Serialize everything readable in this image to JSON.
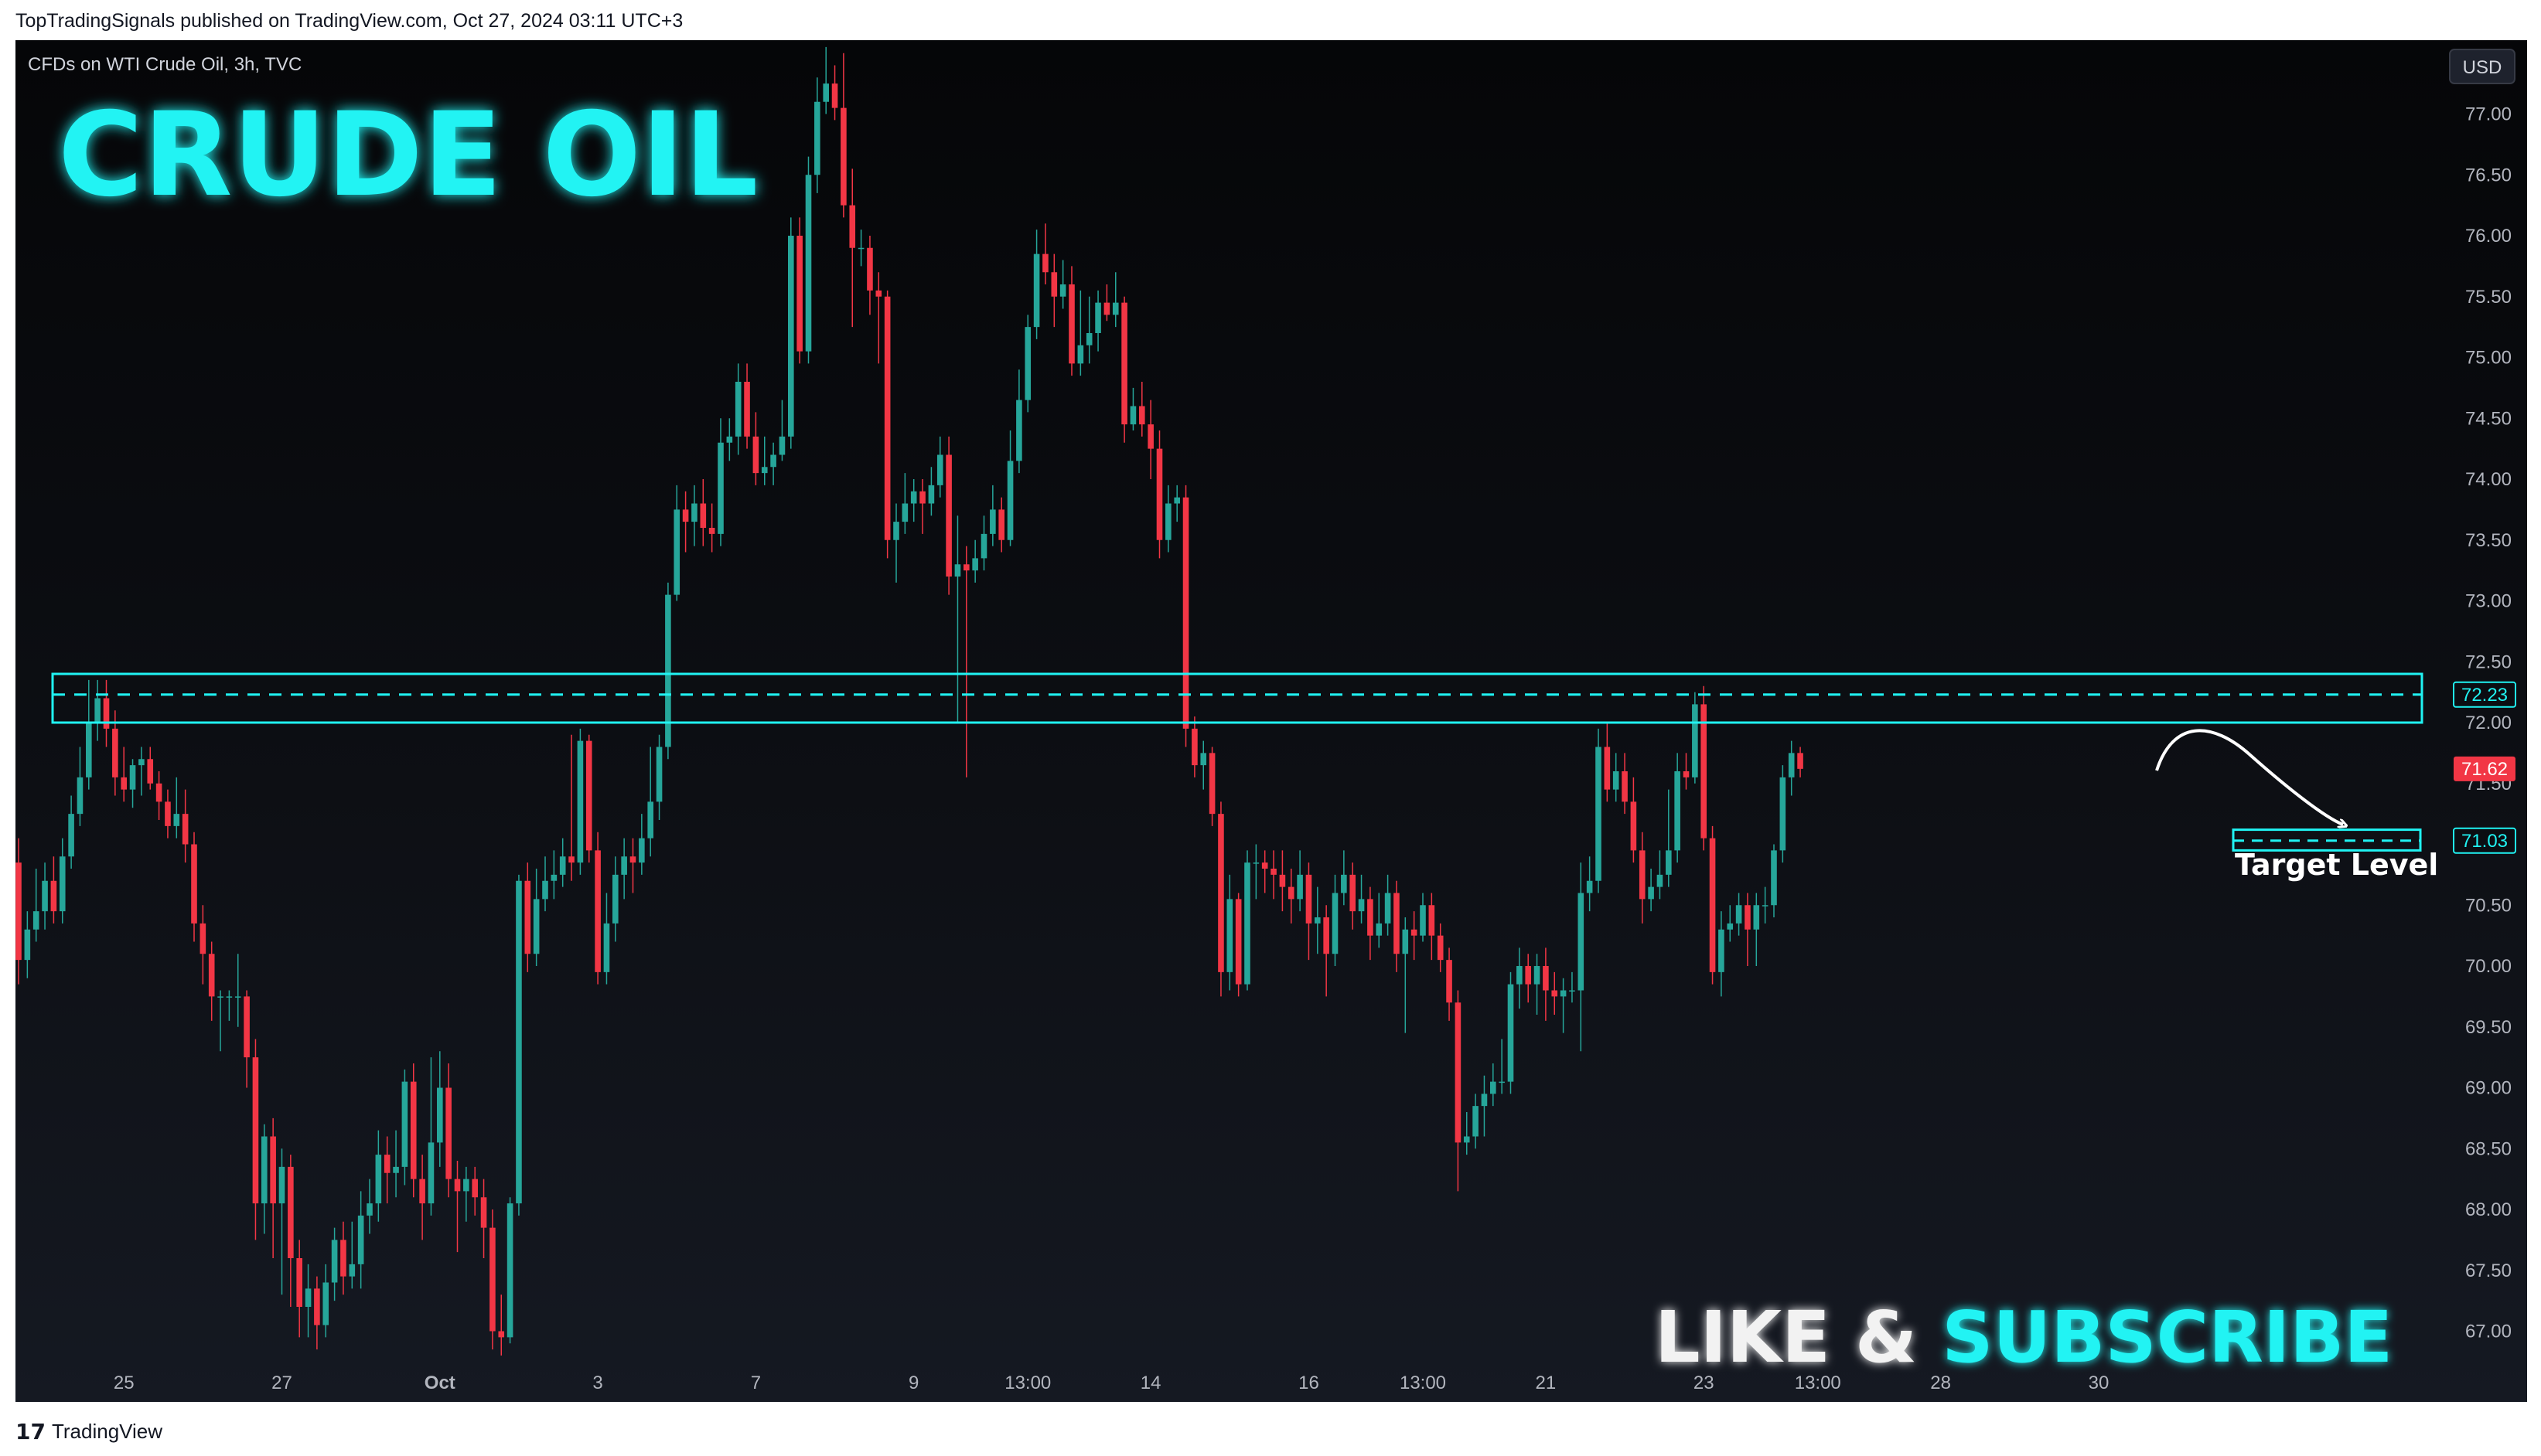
{
  "header": {
    "publish_text": "TopTradingSignals published on TradingView.com, Oct 27, 2024 03:11 UTC+3"
  },
  "symbol_info": "CFDs on WTI Crude Oil, 3h, TVC",
  "currency_button": "USD",
  "title_overlay": "CRUDE OIL",
  "promo": {
    "part1": "LIKE & ",
    "part2": "SUBSCRIBE"
  },
  "target_label": "Target Level",
  "footer": {
    "logo_mark": "17",
    "logo_text": "TradingView"
  },
  "colors": {
    "up": "#26a69a",
    "down": "#f23645",
    "accent": "#20f3f3",
    "background": "#0b0d12"
  },
  "chart_data": {
    "type": "candlestick",
    "symbol": "CFDs on WTI Crude Oil",
    "timeframe": "3h",
    "ylim": [
      66.6,
      77.6
    ],
    "price_ticks": [
      "77.00",
      "76.50",
      "76.00",
      "75.50",
      "75.00",
      "74.50",
      "74.00",
      "73.50",
      "73.00",
      "72.50",
      "72.00",
      "71.50",
      "71.00",
      "70.50",
      "70.00",
      "69.50",
      "69.00",
      "68.50",
      "68.00",
      "67.50",
      "67.00"
    ],
    "time_ticks": [
      {
        "label": "25",
        "idx": 12
      },
      {
        "label": "27",
        "idx": 30
      },
      {
        "label": "Oct",
        "idx": 48
      },
      {
        "label": "3",
        "idx": 66
      },
      {
        "label": "7",
        "idx": 84
      },
      {
        "label": "9",
        "idx": 102
      },
      {
        "label": "13:00",
        "idx": 115
      },
      {
        "label": "14",
        "idx": 129
      },
      {
        "label": "16",
        "idx": 147
      },
      {
        "label": "13:00",
        "idx": 160
      },
      {
        "label": "21",
        "idx": 174
      },
      {
        "label": "23",
        "idx": 192
      },
      {
        "label": "13:00",
        "idx": 205
      },
      {
        "label": "28",
        "idx": 219
      },
      {
        "label": "30",
        "idx": 237
      }
    ],
    "resistance_zone": {
      "low": 72.0,
      "high": 72.4,
      "level": "72.23"
    },
    "target_zone": {
      "low": 70.95,
      "high": 71.12,
      "level": "71.03"
    },
    "last_price": "71.62",
    "candles": [
      [
        70.85,
        70.05,
        71.05,
        69.85
      ],
      [
        70.05,
        70.3,
        70.45,
        69.9
      ],
      [
        70.3,
        70.45,
        70.8,
        70.2
      ],
      [
        70.45,
        70.7,
        70.85,
        70.3
      ],
      [
        70.7,
        70.45,
        70.9,
        70.35
      ],
      [
        70.45,
        70.9,
        71.05,
        70.35
      ],
      [
        70.9,
        71.25,
        71.4,
        70.8
      ],
      [
        71.25,
        71.55,
        71.8,
        71.15
      ],
      [
        71.55,
        72.0,
        72.35,
        71.45
      ],
      [
        72.0,
        72.2,
        72.35,
        71.85
      ],
      [
        72.2,
        71.95,
        72.35,
        71.8
      ],
      [
        71.95,
        71.55,
        72.1,
        71.4
      ],
      [
        71.55,
        71.45,
        71.8,
        71.35
      ],
      [
        71.45,
        71.65,
        71.7,
        71.3
      ],
      [
        71.65,
        71.7,
        71.8,
        71.4
      ],
      [
        71.7,
        71.5,
        71.8,
        71.45
      ],
      [
        71.5,
        71.35,
        71.6,
        71.2
      ],
      [
        71.35,
        71.15,
        71.45,
        71.05
      ],
      [
        71.15,
        71.25,
        71.55,
        71.05
      ],
      [
        71.25,
        71.0,
        71.45,
        70.85
      ],
      [
        71.0,
        70.35,
        71.1,
        70.2
      ],
      [
        70.35,
        70.1,
        70.5,
        69.85
      ],
      [
        70.1,
        69.75,
        70.2,
        69.55
      ],
      [
        69.75,
        69.75,
        69.8,
        69.3
      ],
      [
        69.75,
        69.75,
        69.8,
        69.55
      ],
      [
        69.75,
        69.75,
        70.1,
        69.5
      ],
      [
        69.75,
        69.25,
        69.8,
        69.0
      ],
      [
        69.25,
        68.05,
        69.4,
        67.75
      ],
      [
        68.05,
        68.6,
        68.7,
        67.8
      ],
      [
        68.6,
        68.05,
        68.75,
        67.6
      ],
      [
        68.05,
        68.35,
        68.5,
        67.3
      ],
      [
        68.35,
        67.6,
        68.45,
        67.2
      ],
      [
        67.6,
        67.2,
        67.75,
        66.95
      ],
      [
        67.2,
        67.35,
        67.55,
        66.95
      ],
      [
        67.35,
        67.05,
        67.45,
        66.85
      ],
      [
        67.05,
        67.4,
        67.55,
        66.95
      ],
      [
        67.4,
        67.75,
        67.85,
        67.25
      ],
      [
        67.75,
        67.45,
        67.9,
        67.3
      ],
      [
        67.45,
        67.55,
        67.9,
        67.35
      ],
      [
        67.55,
        67.95,
        68.15,
        67.35
      ],
      [
        67.95,
        68.05,
        68.25,
        67.8
      ],
      [
        68.05,
        68.45,
        68.65,
        67.9
      ],
      [
        68.45,
        68.3,
        68.6,
        68.05
      ],
      [
        68.3,
        68.35,
        68.65,
        68.1
      ],
      [
        68.35,
        69.05,
        69.15,
        68.2
      ],
      [
        69.05,
        68.25,
        69.2,
        68.1
      ],
      [
        68.25,
        68.05,
        68.45,
        67.75
      ],
      [
        68.05,
        68.55,
        69.25,
        67.95
      ],
      [
        68.55,
        69.0,
        69.3,
        68.35
      ],
      [
        69.0,
        68.25,
        69.2,
        68.1
      ],
      [
        68.25,
        68.15,
        68.4,
        67.65
      ],
      [
        68.15,
        68.25,
        68.35,
        67.9
      ],
      [
        68.25,
        68.1,
        68.35,
        67.95
      ],
      [
        68.1,
        67.85,
        68.25,
        67.6
      ],
      [
        67.85,
        67.0,
        68.0,
        66.85
      ],
      [
        67.0,
        66.95,
        67.3,
        66.8
      ],
      [
        66.95,
        68.05,
        68.1,
        66.9
      ],
      [
        68.05,
        70.7,
        70.75,
        67.95
      ],
      [
        70.7,
        70.1,
        70.85,
        69.95
      ],
      [
        70.1,
        70.55,
        70.8,
        70.0
      ],
      [
        70.55,
        70.7,
        70.9,
        70.45
      ],
      [
        70.7,
        70.75,
        70.95,
        70.55
      ],
      [
        70.75,
        70.9,
        71.05,
        70.65
      ],
      [
        70.9,
        70.85,
        71.9,
        70.7
      ],
      [
        70.85,
        71.85,
        71.95,
        70.75
      ],
      [
        71.85,
        70.95,
        71.9,
        70.85
      ],
      [
        70.95,
        69.95,
        71.1,
        69.85
      ],
      [
        69.95,
        70.35,
        70.6,
        69.85
      ],
      [
        70.35,
        70.75,
        70.9,
        70.2
      ],
      [
        70.75,
        70.9,
        71.05,
        70.55
      ],
      [
        70.9,
        70.85,
        71.05,
        70.6
      ],
      [
        70.85,
        71.05,
        71.25,
        70.75
      ],
      [
        71.05,
        71.35,
        71.8,
        70.9
      ],
      [
        71.35,
        71.8,
        71.9,
        71.2
      ],
      [
        71.8,
        73.05,
        73.15,
        71.7
      ],
      [
        73.05,
        73.75,
        73.95,
        73.0
      ],
      [
        73.75,
        73.65,
        73.9,
        73.4
      ],
      [
        73.65,
        73.8,
        73.95,
        73.45
      ],
      [
        73.8,
        73.6,
        74.0,
        73.45
      ],
      [
        73.6,
        73.55,
        73.8,
        73.4
      ],
      [
        73.55,
        74.3,
        74.5,
        73.45
      ],
      [
        74.3,
        74.35,
        74.5,
        74.15
      ],
      [
        74.35,
        74.8,
        74.95,
        74.2
      ],
      [
        74.8,
        74.35,
        74.95,
        74.25
      ],
      [
        74.35,
        74.05,
        74.55,
        73.95
      ],
      [
        74.05,
        74.1,
        74.35,
        73.95
      ],
      [
        74.1,
        74.2,
        74.3,
        73.95
      ],
      [
        74.2,
        74.35,
        74.65,
        74.15
      ],
      [
        74.35,
        76.0,
        76.15,
        74.25
      ],
      [
        76.0,
        75.05,
        76.15,
        74.95
      ],
      [
        75.05,
        76.5,
        76.65,
        74.95
      ],
      [
        76.5,
        77.1,
        77.3,
        76.35
      ],
      [
        77.1,
        77.25,
        77.55,
        77.0
      ],
      [
        77.25,
        77.05,
        77.4,
        76.95
      ],
      [
        77.05,
        76.25,
        77.5,
        76.15
      ],
      [
        76.25,
        75.9,
        76.55,
        75.25
      ],
      [
        75.9,
        75.9,
        76.05,
        75.75
      ],
      [
        75.9,
        75.55,
        76.0,
        75.35
      ],
      [
        75.55,
        75.5,
        75.7,
        74.95
      ],
      [
        75.5,
        73.5,
        75.55,
        73.35
      ],
      [
        73.5,
        73.65,
        73.8,
        73.15
      ],
      [
        73.65,
        73.8,
        74.05,
        73.55
      ],
      [
        73.8,
        73.9,
        74.0,
        73.65
      ],
      [
        73.9,
        73.8,
        74.0,
        73.55
      ],
      [
        73.8,
        73.95,
        74.1,
        73.7
      ],
      [
        73.95,
        74.2,
        74.35,
        73.85
      ],
      [
        74.2,
        73.2,
        74.35,
        73.05
      ],
      [
        73.2,
        73.3,
        73.7,
        72.0
      ],
      [
        73.3,
        73.25,
        73.45,
        71.55
      ],
      [
        73.25,
        73.35,
        73.5,
        73.15
      ],
      [
        73.35,
        73.55,
        73.7,
        73.25
      ],
      [
        73.55,
        73.75,
        73.95,
        73.45
      ],
      [
        73.75,
        73.5,
        73.85,
        73.4
      ],
      [
        73.5,
        74.15,
        74.4,
        73.45
      ],
      [
        74.15,
        74.65,
        74.9,
        74.05
      ],
      [
        74.65,
        75.25,
        75.35,
        74.55
      ],
      [
        75.25,
        75.85,
        76.05,
        75.15
      ],
      [
        75.85,
        75.7,
        76.1,
        75.6
      ],
      [
        75.7,
        75.5,
        75.85,
        75.25
      ],
      [
        75.5,
        75.6,
        75.8,
        75.4
      ],
      [
        75.6,
        74.95,
        75.75,
        74.85
      ],
      [
        74.95,
        75.1,
        75.55,
        74.85
      ],
      [
        75.1,
        75.2,
        75.5,
        74.95
      ],
      [
        75.2,
        75.45,
        75.55,
        75.05
      ],
      [
        75.45,
        75.35,
        75.6,
        75.3
      ],
      [
        75.35,
        75.45,
        75.7,
        75.25
      ],
      [
        75.45,
        74.45,
        75.5,
        74.3
      ],
      [
        74.45,
        74.6,
        74.75,
        74.4
      ],
      [
        74.6,
        74.45,
        74.8,
        74.35
      ],
      [
        74.45,
        74.25,
        74.65,
        74.0
      ],
      [
        74.25,
        73.5,
        74.4,
        73.35
      ],
      [
        73.5,
        73.8,
        73.95,
        73.4
      ],
      [
        73.8,
        73.85,
        73.95,
        73.65
      ],
      [
        73.85,
        71.95,
        73.95,
        71.8
      ],
      [
        71.95,
        71.65,
        72.05,
        71.55
      ],
      [
        71.65,
        71.75,
        71.85,
        71.45
      ],
      [
        71.75,
        71.25,
        71.8,
        71.15
      ],
      [
        71.25,
        69.95,
        71.35,
        69.75
      ],
      [
        69.95,
        70.55,
        70.75,
        69.8
      ],
      [
        70.55,
        69.85,
        70.6,
        69.75
      ],
      [
        69.85,
        70.85,
        70.95,
        69.8
      ],
      [
        70.85,
        70.85,
        71.0,
        70.55
      ],
      [
        70.85,
        70.8,
        70.95,
        70.6
      ],
      [
        70.8,
        70.75,
        70.95,
        70.55
      ],
      [
        70.75,
        70.65,
        70.95,
        70.45
      ],
      [
        70.65,
        70.55,
        70.8,
        70.35
      ],
      [
        70.55,
        70.75,
        70.95,
        70.45
      ],
      [
        70.75,
        70.35,
        70.85,
        70.05
      ],
      [
        70.35,
        70.4,
        70.65,
        70.1
      ],
      [
        70.4,
        70.1,
        70.5,
        69.75
      ],
      [
        70.1,
        70.6,
        70.75,
        70.0
      ],
      [
        70.6,
        70.75,
        70.95,
        70.5
      ],
      [
        70.75,
        70.45,
        70.85,
        70.3
      ],
      [
        70.45,
        70.55,
        70.75,
        70.35
      ],
      [
        70.55,
        70.25,
        70.65,
        70.05
      ],
      [
        70.25,
        70.35,
        70.6,
        70.15
      ],
      [
        70.35,
        70.6,
        70.75,
        70.25
      ],
      [
        70.6,
        70.1,
        70.7,
        69.95
      ],
      [
        70.1,
        70.3,
        70.4,
        69.45
      ],
      [
        70.3,
        70.25,
        70.45,
        70.05
      ],
      [
        70.25,
        70.5,
        70.6,
        70.2
      ],
      [
        70.5,
        70.25,
        70.6,
        70.05
      ],
      [
        70.25,
        70.05,
        70.35,
        69.95
      ],
      [
        70.05,
        69.7,
        70.15,
        69.55
      ],
      [
        69.7,
        68.55,
        69.8,
        68.15
      ],
      [
        68.55,
        68.6,
        68.8,
        68.45
      ],
      [
        68.6,
        68.85,
        68.95,
        68.5
      ],
      [
        68.85,
        68.95,
        69.1,
        68.6
      ],
      [
        68.95,
        69.05,
        69.2,
        68.85
      ],
      [
        69.05,
        69.05,
        69.4,
        68.95
      ],
      [
        69.05,
        69.85,
        69.95,
        68.95
      ],
      [
        69.85,
        70.0,
        70.15,
        69.65
      ],
      [
        70.0,
        69.85,
        70.1,
        69.7
      ],
      [
        69.85,
        70.0,
        70.1,
        69.6
      ],
      [
        70.0,
        69.8,
        70.15,
        69.55
      ],
      [
        69.8,
        69.75,
        69.95,
        69.6
      ],
      [
        69.75,
        69.8,
        69.9,
        69.45
      ],
      [
        69.8,
        69.8,
        69.95,
        69.7
      ],
      [
        69.8,
        70.6,
        70.85,
        69.3
      ],
      [
        70.6,
        70.7,
        70.9,
        70.45
      ],
      [
        70.7,
        71.8,
        71.95,
        70.6
      ],
      [
        71.8,
        71.45,
        72.0,
        71.35
      ],
      [
        71.45,
        71.6,
        71.75,
        71.35
      ],
      [
        71.6,
        71.35,
        71.75,
        71.25
      ],
      [
        71.35,
        70.95,
        71.55,
        70.85
      ],
      [
        70.95,
        70.55,
        71.1,
        70.35
      ],
      [
        70.55,
        70.65,
        70.8,
        70.45
      ],
      [
        70.65,
        70.75,
        70.95,
        70.55
      ],
      [
        70.75,
        70.95,
        71.45,
        70.65
      ],
      [
        70.95,
        71.6,
        71.75,
        70.85
      ],
      [
        71.6,
        71.55,
        71.75,
        71.45
      ],
      [
        71.55,
        72.15,
        72.25,
        71.5
      ],
      [
        72.15,
        71.05,
        72.3,
        70.95
      ],
      [
        71.05,
        69.95,
        71.15,
        69.85
      ],
      [
        69.95,
        70.3,
        70.45,
        69.75
      ],
      [
        70.3,
        70.35,
        70.5,
        70.2
      ],
      [
        70.35,
        70.5,
        70.6,
        70.25
      ],
      [
        70.5,
        70.3,
        70.6,
        70.0
      ],
      [
        70.3,
        70.5,
        70.6,
        70.0
      ],
      [
        70.5,
        70.5,
        70.65,
        70.35
      ],
      [
        70.5,
        70.95,
        71.0,
        70.4
      ],
      [
        70.95,
        71.55,
        71.65,
        70.85
      ],
      [
        71.55,
        71.75,
        71.85,
        71.4
      ],
      [
        71.75,
        71.62,
        71.8,
        71.55
      ]
    ]
  }
}
